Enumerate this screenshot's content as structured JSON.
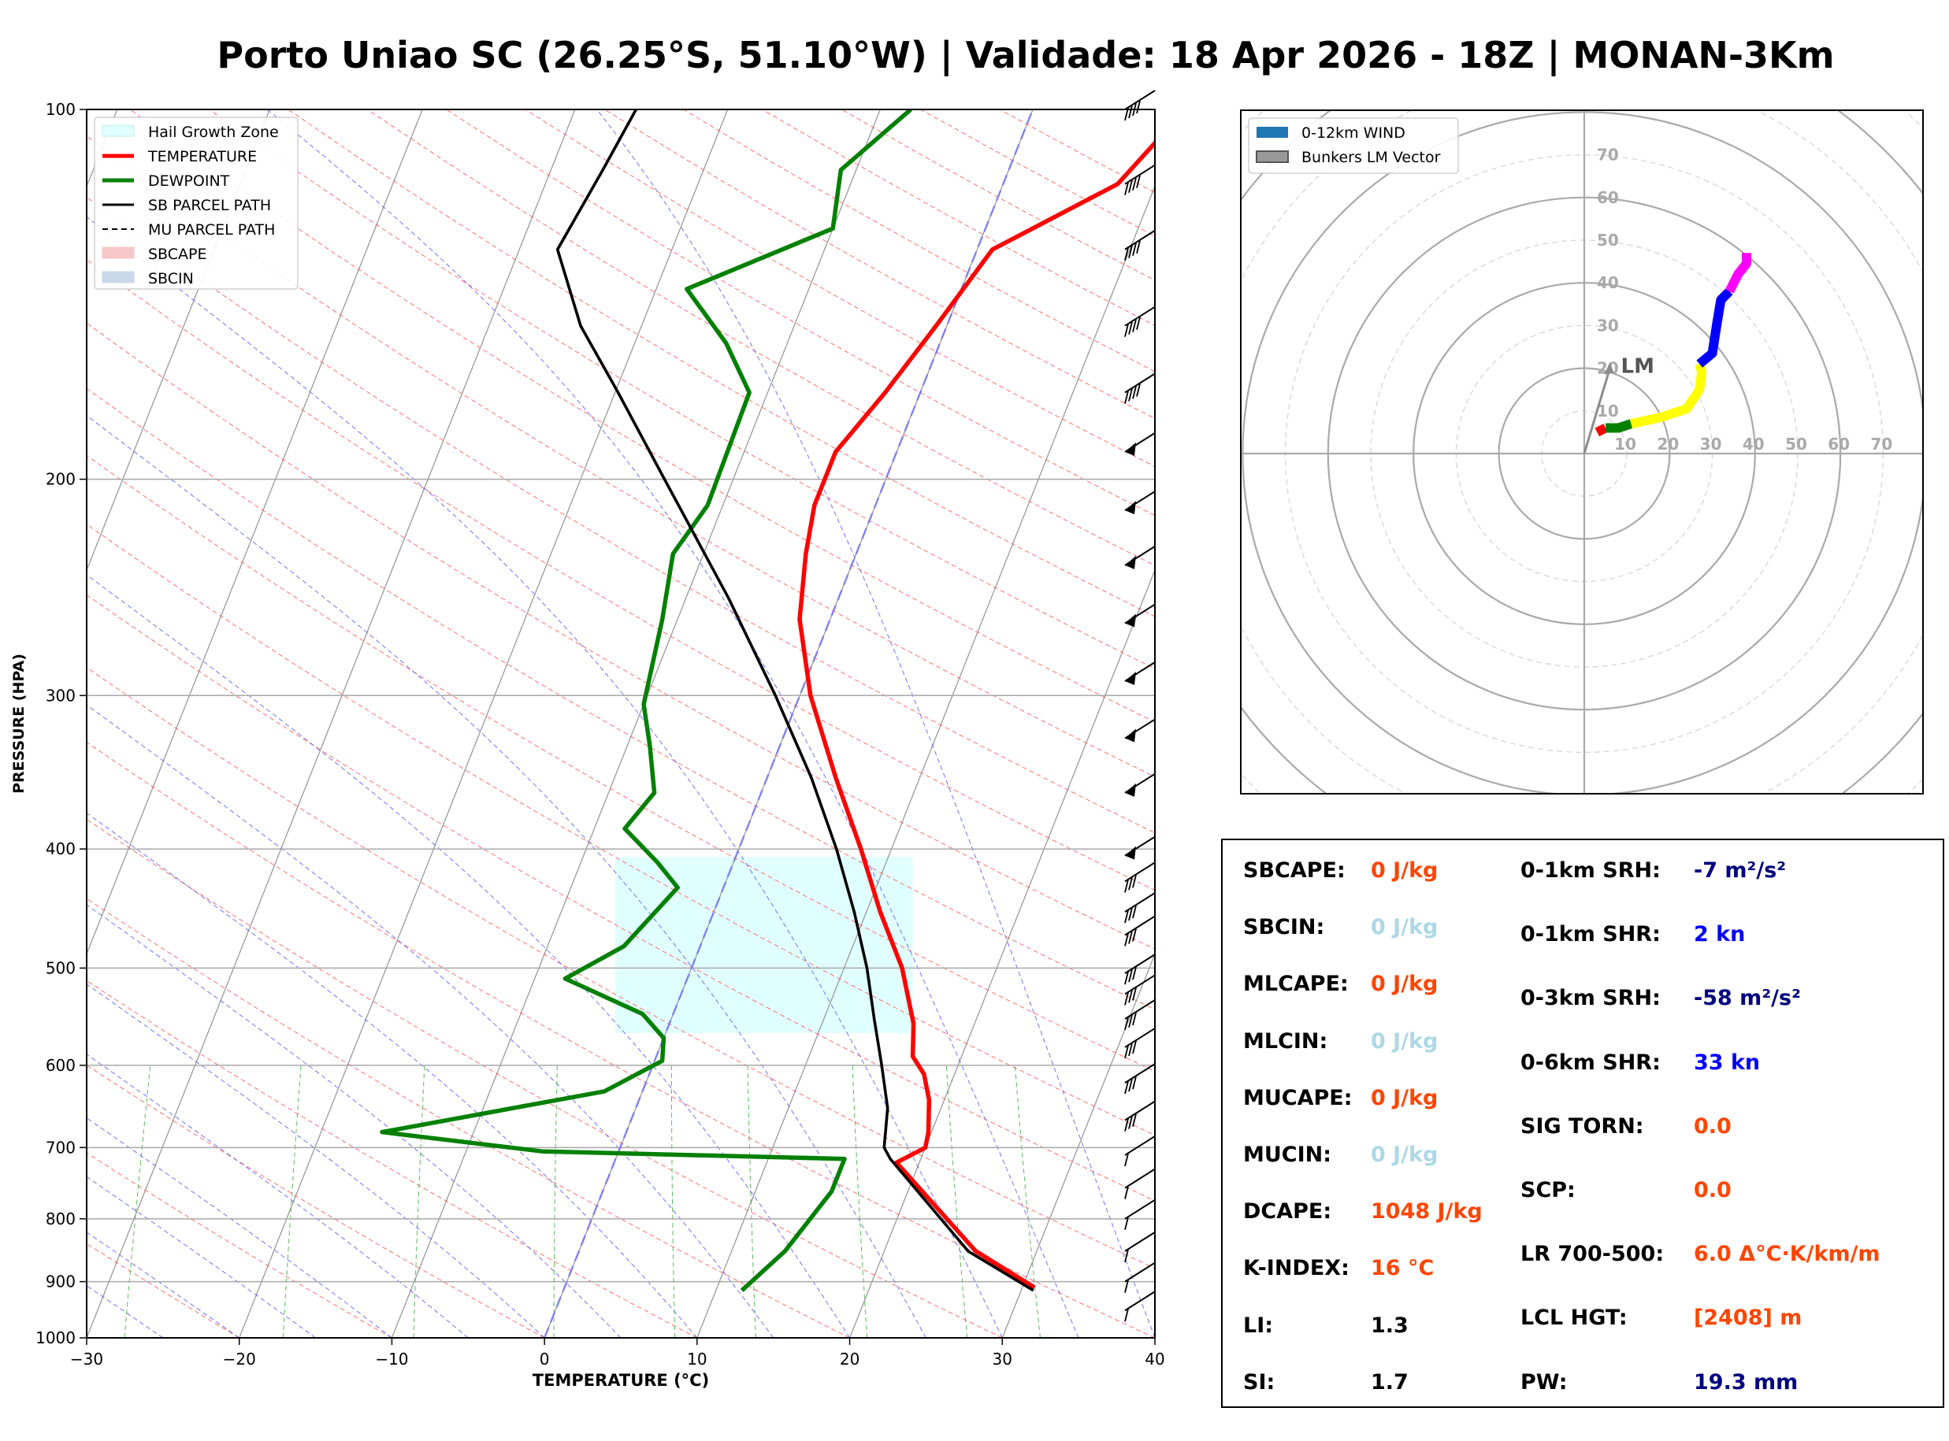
{
  "title": "Porto Uniao SC (26.25°S, 51.10°W) | Validade: 18 Apr 2026 - 18Z | MONAN-3Km",
  "chart_data": [
    {
      "type": "line",
      "name": "skew-t",
      "xlabel": "TEMPERATURE (°C)",
      "ylabel": "PRESSURE (HPA)",
      "xlim": [
        -30,
        40
      ],
      "ylim": [
        1000,
        100
      ],
      "y_scale": "log",
      "x_ticks": [
        "−30",
        "−20",
        "−10",
        "0",
        "10",
        "20",
        "30",
        "40"
      ],
      "y_ticks": [
        "100",
        "200",
        "300",
        "400",
        "500",
        "600",
        "700",
        "800",
        "900",
        "1000"
      ],
      "legend": [
        "Hail Growth Zone",
        "TEMPERATURE",
        "DEWPOINT",
        "SB PARCEL PATH",
        "MU PARCEL PATH",
        "SBCAPE",
        "SBCIN"
      ],
      "legend_loc": "top-left",
      "hail_growth_zone": {
        "p_bottom": 565,
        "p_top": 406
      },
      "series": [
        {
          "name": "TEMPERATURE",
          "color": "#ff0000",
          "points": [
            [
              910,
              30.8
            ],
            [
              850,
              26
            ],
            [
              720,
              18.5
            ],
            [
              700,
              20
            ],
            [
              680,
              19.8
            ],
            [
              640,
              19
            ],
            [
              610,
              18
            ],
            [
              590,
              16.8
            ],
            [
              555,
              16
            ],
            [
              500,
              13.8
            ],
            [
              450,
              10.9
            ],
            [
              400,
              8
            ],
            [
              350,
              4.5
            ],
            [
              300,
              0.7
            ],
            [
              260,
              -2
            ],
            [
              230,
              -3.3
            ],
            [
              210,
              -4
            ],
            [
              190,
              -4
            ],
            [
              170,
              -2.3
            ],
            [
              150,
              -0.7
            ],
            [
              130,
              1
            ],
            [
              115,
              7.5
            ],
            [
              100,
              10
            ]
          ]
        },
        {
          "name": "DEWPOINT",
          "color": "#008000",
          "points": [
            [
              915,
              11.7
            ],
            [
              850,
              13.5
            ],
            [
              760,
              15
            ],
            [
              715,
              15
            ],
            [
              705,
              -5
            ],
            [
              680,
              -16
            ],
            [
              630,
              -2.5
            ],
            [
              595,
              0.5
            ],
            [
              570,
              0
            ],
            [
              545,
              -2
            ],
            [
              510,
              -8
            ],
            [
              480,
              -5
            ],
            [
              430,
              -3
            ],
            [
              410,
              -5
            ],
            [
              385,
              -8
            ],
            [
              360,
              -7
            ],
            [
              330,
              -8.5
            ],
            [
              305,
              -10
            ],
            [
              260,
              -11
            ],
            [
              230,
              -12
            ],
            [
              210,
              -11
            ],
            [
              170,
              -11.2
            ],
            [
              155,
              -14
            ],
            [
              140,
              -18
            ],
            [
              125,
              -10
            ],
            [
              112,
              -11
            ],
            [
              100,
              -8
            ]
          ]
        },
        {
          "name": "SB PARCEL PATH",
          "color": "#000000",
          "points": [
            [
              915,
              30.8
            ],
            [
              850,
              25.5
            ],
            [
              715,
              18
            ],
            [
              700,
              17.3
            ],
            [
              650,
              16.5
            ],
            [
              600,
              15
            ],
            [
              550,
              13.3
            ],
            [
              500,
              11.5
            ],
            [
              450,
              9.2
            ],
            [
              400,
              6.4
            ],
            [
              350,
              2.9
            ],
            [
              300,
              -1.6
            ],
            [
              250,
              -7.2
            ],
            [
              200,
              -14.5
            ],
            [
              170,
              -19.8
            ],
            [
              150,
              -24
            ],
            [
              130,
              -27.5
            ],
            [
              112,
              -26.6
            ],
            [
              100,
              -26
            ]
          ]
        }
      ],
      "wind_barbs": {
        "levels": [
          100,
          115,
          130,
          150,
          170,
          190,
          212,
          235,
          262,
          292,
          325,
          360,
          405,
          425,
          450,
          470,
          505,
          525,
          550,
          580,
          620,
          665,
          710,
          755,
          800,
          850,
          900,
          950
        ]
      }
    },
    {
      "type": "line",
      "name": "hodograph",
      "legend": [
        "0-12km WIND",
        "Bunkers LM Vector"
      ],
      "legend_loc": "top-left",
      "ring_labels": [
        "10",
        "20",
        "30",
        "40",
        "50",
        "60",
        "70"
      ],
      "lm_label": "LM",
      "lm_vector": [
        6,
        20
      ],
      "segments": [
        {
          "name": "0-1km",
          "color": "#ff0000",
          "points": [
            [
              3,
              5
            ],
            [
              5,
              6
            ]
          ]
        },
        {
          "name": "1-3km",
          "color": "#008000",
          "points": [
            [
              5,
              6
            ],
            [
              8,
              6
            ],
            [
              11,
              7
            ]
          ]
        },
        {
          "name": "3-6km",
          "color": "#ffff00",
          "points": [
            [
              11,
              7
            ],
            [
              18,
              8.5
            ],
            [
              24,
              10.5
            ],
            [
              27,
              15
            ],
            [
              27.5,
              19
            ],
            [
              27,
              21
            ]
          ]
        },
        {
          "name": "6-9km",
          "color": "#0000ff",
          "points": [
            [
              27,
              21
            ],
            [
              30,
              23.5
            ],
            [
              31,
              30
            ],
            [
              32,
              36
            ],
            [
              34,
              38
            ]
          ]
        },
        {
          "name": "9-12km",
          "color": "#ff00ff",
          "points": [
            [
              34,
              38
            ],
            [
              36,
              42
            ],
            [
              38,
              44.5
            ],
            [
              38,
              47
            ]
          ]
        }
      ]
    }
  ],
  "indices": {
    "left": [
      {
        "label": "SBCAPE:",
        "value": "0 J/kg",
        "color": "#ff4500"
      },
      {
        "label": "SBCIN:",
        "value": "0 J/kg",
        "color": "#add8e6"
      },
      {
        "label": "MLCAPE:",
        "value": "0 J/kg",
        "color": "#ff4500"
      },
      {
        "label": "MLCIN:",
        "value": "0 J/kg",
        "color": "#add8e6"
      },
      {
        "label": "MUCAPE:",
        "value": "0 J/kg",
        "color": "#ff4500"
      },
      {
        "label": "MUCIN:",
        "value": "0 J/kg",
        "color": "#add8e6"
      },
      {
        "label": "DCAPE:",
        "value": "1048 J/kg",
        "color": "#ff4500"
      },
      {
        "label": "K-INDEX:",
        "value": "16 °C",
        "color": "#ff4500"
      },
      {
        "label": "LI:",
        "value": "1.3",
        "color": "#000000"
      },
      {
        "label": "SI:",
        "value": "1.7",
        "color": "#000000"
      }
    ],
    "right": [
      {
        "label": "0-1km SRH:",
        "value": "-7 m²/s²",
        "color": "#000080"
      },
      {
        "label": "0-1km SHR:",
        "value": "2 kn",
        "color": "#0000ff"
      },
      {
        "label": "0-3km SRH:",
        "value": "-58 m²/s²",
        "color": "#000080"
      },
      {
        "label": "0-6km SHR:",
        "value": "33 kn",
        "color": "#0000ff"
      },
      {
        "label": "SIG TORN:",
        "value": "0.0",
        "color": "#ff4500"
      },
      {
        "label": "SCP:",
        "value": "0.0",
        "color": "#ff4500"
      },
      {
        "label": "LR 700-500:",
        "value": "6.0 Δ°C·K/km/m",
        "color": "#ff4500"
      },
      {
        "label": "LCL HGT:",
        "value": "[2408] m",
        "color": "#ff4500"
      },
      {
        "label": "PW:",
        "value": "19.3 mm",
        "color": "#000080"
      }
    ]
  }
}
